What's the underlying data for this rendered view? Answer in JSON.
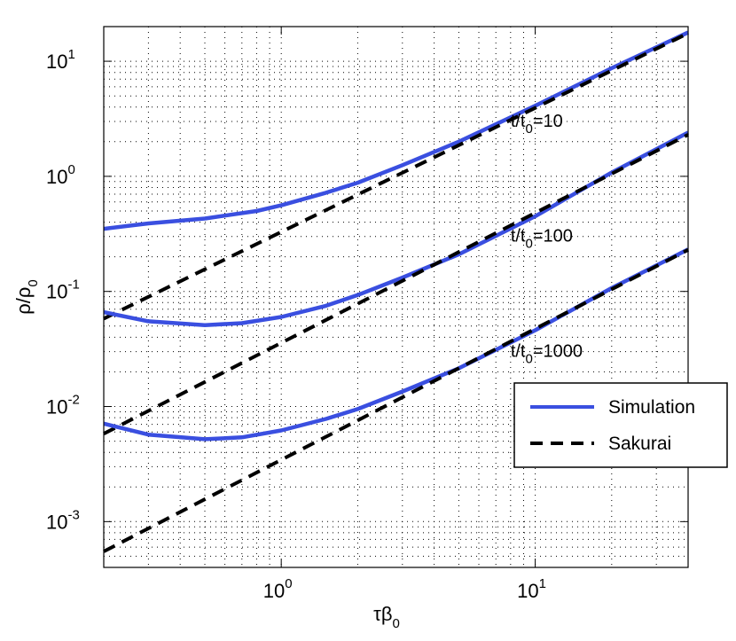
{
  "chart_data": {
    "type": "line",
    "xscale": "log",
    "yscale": "log",
    "xlim": [
      0.2,
      40
    ],
    "ylim": [
      0.0004,
      20
    ],
    "xlabel": "τβ0",
    "ylabel": "ρ/ρ0",
    "xticks": [
      {
        "base": "10",
        "exp": "0",
        "value": 1
      },
      {
        "base": "10",
        "exp": "1",
        "value": 10
      }
    ],
    "yticks": [
      {
        "base": "10",
        "exp": "-3",
        "value": 0.001
      },
      {
        "base": "10",
        "exp": "-2",
        "value": 0.01
      },
      {
        "base": "10",
        "exp": "-1",
        "value": 0.1
      },
      {
        "base": "10",
        "exp": "0",
        "value": 1
      },
      {
        "base": "10",
        "exp": "1",
        "value": 10
      }
    ],
    "grid": "minor dotted",
    "legend": {
      "placement": "lower-right",
      "entries": [
        {
          "label": "Simulation",
          "style": "solid",
          "color": "#3a4fe0"
        },
        {
          "label": "Sakurai",
          "style": "dashed",
          "color": "#000000"
        }
      ]
    },
    "annotations": [
      {
        "text": "t/t0=10",
        "x": 8,
        "y": 2.7
      },
      {
        "text": "t/t0=100",
        "x": 8,
        "y": 0.27
      },
      {
        "text": "t/t0=1000",
        "x": 8,
        "y": 0.027
      }
    ],
    "series": [
      {
        "name": "Simulation",
        "group": "t/t0=10",
        "style": "solid",
        "color": "#3a4fe0",
        "x": [
          0.2,
          0.3,
          0.5,
          0.8,
          1.0,
          1.5,
          2,
          3,
          5,
          10,
          20,
          40
        ],
        "y": [
          0.35,
          0.39,
          0.43,
          0.5,
          0.56,
          0.72,
          0.88,
          1.25,
          2.0,
          4.1,
          8.7,
          17.8
        ]
      },
      {
        "name": "Sakurai",
        "group": "t/t0=10",
        "style": "dashed",
        "color": "#000000",
        "x": [
          0.2,
          40
        ],
        "y": [
          0.058,
          17.5
        ]
      },
      {
        "name": "Simulation",
        "group": "t/t0=100",
        "style": "solid",
        "color": "#3a4fe0",
        "x": [
          0.2,
          0.3,
          0.5,
          0.7,
          1.0,
          1.5,
          2,
          3,
          5,
          10,
          20,
          40
        ],
        "y": [
          0.066,
          0.055,
          0.051,
          0.053,
          0.06,
          0.075,
          0.093,
          0.132,
          0.21,
          0.45,
          1.08,
          2.4
        ]
      },
      {
        "name": "Sakurai",
        "group": "t/t0=100",
        "style": "dashed",
        "color": "#000000",
        "x": [
          0.2,
          40
        ],
        "y": [
          0.0058,
          2.3
        ]
      },
      {
        "name": "Simulation",
        "group": "t/t0=1000",
        "style": "solid",
        "color": "#3a4fe0",
        "x": [
          0.2,
          0.3,
          0.5,
          0.7,
          1.0,
          1.5,
          2,
          3,
          5,
          10,
          20,
          40
        ],
        "y": [
          0.0071,
          0.0057,
          0.0052,
          0.0054,
          0.0062,
          0.0078,
          0.0095,
          0.0135,
          0.0215,
          0.046,
          0.107,
          0.232
        ]
      },
      {
        "name": "Sakurai",
        "group": "t/t0=1000",
        "style": "dashed",
        "color": "#000000",
        "x": [
          0.2,
          40
        ],
        "y": [
          0.00055,
          0.23
        ]
      }
    ]
  }
}
